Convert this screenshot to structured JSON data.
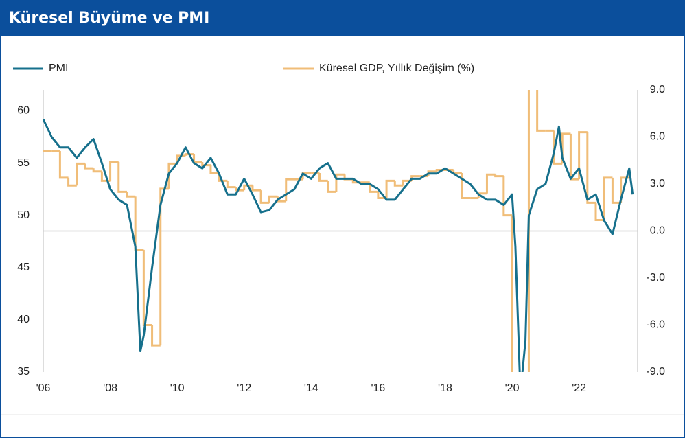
{
  "chart_data": {
    "type": "line",
    "title": "Küresel Büyüme ve PMI",
    "xlim": [
      2006,
      2023.75
    ],
    "xticks": [
      {
        "value": 2006,
        "label": "'06"
      },
      {
        "value": 2008,
        "label": "'08"
      },
      {
        "value": 2010,
        "label": "'10"
      },
      {
        "value": 2012,
        "label": "'12"
      },
      {
        "value": 2014,
        "label": "'14"
      },
      {
        "value": 2016,
        "label": "'16"
      },
      {
        "value": 2018,
        "label": "'18"
      },
      {
        "value": 2020,
        "label": "'20"
      },
      {
        "value": 2022,
        "label": "'22"
      }
    ],
    "ylim": [
      35,
      62
    ],
    "yticks": [
      35,
      40,
      45,
      50,
      55,
      60
    ],
    "y2lim": [
      -9,
      9
    ],
    "y2ticks": [
      {
        "value": -9,
        "label": "-9.0"
      },
      {
        "value": -6,
        "label": "-6.0"
      },
      {
        "value": -3,
        "label": "-3.0"
      },
      {
        "value": 0,
        "label": "0.0"
      },
      {
        "value": 3,
        "label": "3.0"
      },
      {
        "value": 6,
        "label": "6.0"
      },
      {
        "value": 9,
        "label": "9.0"
      }
    ],
    "series": [
      {
        "name": "PMI",
        "color": "#16708c",
        "style": "line",
        "x": [
          2006.0,
          2006.25,
          2006.5,
          2006.75,
          2007.0,
          2007.25,
          2007.5,
          2007.75,
          2008.0,
          2008.25,
          2008.5,
          2008.75,
          2008.9,
          2009.0,
          2009.25,
          2009.5,
          2009.75,
          2010.0,
          2010.25,
          2010.5,
          2010.75,
          2011.0,
          2011.25,
          2011.5,
          2011.75,
          2012.0,
          2012.25,
          2012.5,
          2012.75,
          2013.0,
          2013.25,
          2013.5,
          2013.75,
          2014.0,
          2014.25,
          2014.5,
          2014.75,
          2015.0,
          2015.25,
          2015.5,
          2015.75,
          2016.0,
          2016.25,
          2016.5,
          2016.75,
          2017.0,
          2017.25,
          2017.5,
          2017.75,
          2018.0,
          2018.25,
          2018.5,
          2018.75,
          2019.0,
          2019.25,
          2019.5,
          2019.75,
          2020.0,
          2020.1,
          2020.25,
          2020.4,
          2020.5,
          2020.75,
          2021.0,
          2021.25,
          2021.4,
          2021.5,
          2021.75,
          2022.0,
          2022.25,
          2022.5,
          2022.75,
          2023.0,
          2023.25,
          2023.5,
          2023.6
        ],
        "values": [
          59.2,
          57.5,
          56.5,
          56.5,
          55.5,
          56.5,
          57.3,
          55,
          52.5,
          51.5,
          51,
          47,
          37,
          38.5,
          45,
          51,
          54,
          55,
          56.5,
          55,
          54.5,
          55.5,
          54,
          52,
          52,
          53.5,
          52,
          50.3,
          50.5,
          51.5,
          52,
          52.5,
          54,
          53.5,
          54.5,
          55,
          53.5,
          53.5,
          53.5,
          53,
          53,
          52.5,
          51.5,
          51.5,
          52.5,
          53.5,
          53.5,
          54,
          54,
          54.5,
          54,
          53.5,
          53,
          52,
          51.5,
          51.5,
          51,
          52,
          47,
          33,
          38,
          50,
          52.5,
          53,
          56,
          58.5,
          55.5,
          53.5,
          54.5,
          51.5,
          52,
          49.5,
          48.2,
          51.5,
          54.5,
          52
        ]
      },
      {
        "name": "Küresel GDP, Yıllık Değişim (%)",
        "color": "#f0bd78",
        "style": "step",
        "axis": "y2",
        "x": [
          2006.0,
          2006.25,
          2006.5,
          2006.75,
          2007.0,
          2007.25,
          2007.5,
          2007.75,
          2008.0,
          2008.25,
          2008.5,
          2008.75,
          2009.0,
          2009.25,
          2009.5,
          2009.75,
          2010.0,
          2010.25,
          2010.5,
          2010.75,
          2011.0,
          2011.25,
          2011.5,
          2011.75,
          2012.0,
          2012.25,
          2012.5,
          2012.75,
          2013.0,
          2013.25,
          2013.5,
          2013.75,
          2014.0,
          2014.25,
          2014.5,
          2014.75,
          2015.0,
          2015.25,
          2015.5,
          2015.75,
          2016.0,
          2016.25,
          2016.5,
          2016.75,
          2017.0,
          2017.25,
          2017.5,
          2017.75,
          2018.0,
          2018.25,
          2018.5,
          2018.75,
          2019.0,
          2019.25,
          2019.5,
          2019.75,
          2020.0,
          2020.25,
          2020.5,
          2020.75,
          2021.0,
          2021.25,
          2021.5,
          2021.75,
          2022.0,
          2022.25,
          2022.5,
          2022.75,
          2023.0,
          2023.25
        ],
        "values": [
          5.1,
          5.1,
          3.4,
          2.9,
          4.3,
          4.0,
          3.8,
          3.2,
          4.4,
          2.5,
          2.2,
          -1.2,
          -6.0,
          -7.3,
          2.7,
          4.3,
          4.8,
          4.9,
          4.4,
          4.2,
          3.7,
          3.2,
          2.8,
          2.6,
          2.9,
          2.6,
          1.8,
          2.2,
          1.9,
          3.3,
          3.3,
          3.7,
          3.7,
          3.2,
          2.5,
          3.6,
          3.3,
          3.1,
          3.1,
          2.5,
          2.1,
          3.2,
          2.9,
          3.2,
          3.5,
          3.5,
          3.8,
          3.9,
          3.9,
          3.7,
          2.1,
          2.1,
          2.4,
          3.6,
          3.5,
          1.0,
          -10,
          -12,
          14,
          6.4,
          6.4,
          4.3,
          6.2,
          3.3,
          6.3,
          1.8,
          0.7,
          3.4,
          1.8,
          3.4
        ]
      }
    ]
  }
}
